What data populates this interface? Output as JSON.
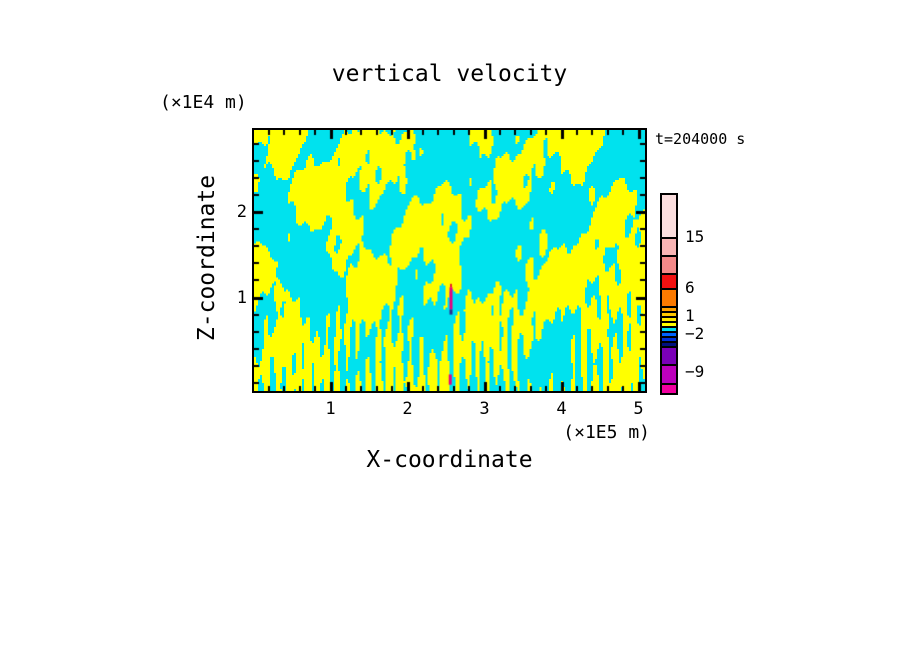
{
  "title": "vertical velocity",
  "time_label": "t=204000 s",
  "axes": {
    "x": {
      "label": "X-coordinate",
      "unit": "(×1E5 m)",
      "tick_labels": [
        "1",
        "2",
        "3",
        "4",
        "5"
      ],
      "major_ticks": [
        1,
        2,
        3,
        4,
        5
      ],
      "minor_start": 0.2,
      "minor_step": 0.2,
      "minor_end": 5.0
    },
    "y": {
      "label": "Z-coordinate",
      "unit": "(×1E4 m)",
      "tick_labels": [
        "1",
        "2"
      ],
      "major_ticks": [
        1,
        2
      ],
      "minor_start": 0.0,
      "minor_step": 0.2,
      "minor_end": 2.8
    }
  },
  "chart_data": {
    "type": "heatmap",
    "title": "vertical velocity",
    "xlabel": "X-coordinate",
    "ylabel": "Z-coordinate",
    "x_unit_note": "(×1E5 m)",
    "y_unit_note": "(×1E4 m)",
    "time_annotation": "t=204000 s",
    "x_range": [
      0,
      5.08
    ],
    "y_range": [
      -0.09,
      2.96
    ],
    "x_ticks": [
      1,
      2,
      3,
      4,
      5
    ],
    "y_ticks": [
      1,
      2
    ],
    "grid": false,
    "legend_position": "right-colorbar",
    "field": {
      "description": "two-level filled contour of vertical velocity: positive=yellow, negative=cyan",
      "threshold": 0,
      "positive_color": "#ffff00",
      "negative_color": "#00e2ee",
      "waves": [
        {
          "a": 0.9,
          "fx": 0.45,
          "fz": -0.6,
          "p": 1.3
        },
        {
          "a": 0.75,
          "fx": 0.78,
          "fz": 0.45,
          "p": 4.2
        },
        {
          "a": 0.6,
          "fx": 1.25,
          "fz": -0.95,
          "p": 2.1
        },
        {
          "a": 0.5,
          "fx": 2.1,
          "fz": 1.35,
          "p": 0.4
        },
        {
          "a": 0.42,
          "fx": 3.6,
          "fz": -2.2,
          "p": 2.0
        }
      ],
      "noises": [
        {
          "a": 1.15,
          "sx": 1.05,
          "sz": 0.95,
          "ox": 0.7,
          "oy": 3.1
        },
        {
          "a": 0.85,
          "sx": 2.2,
          "sz": 2.0,
          "ox": 5.2,
          "oy": 1.7
        },
        {
          "a": 0.55,
          "sx": 4.4,
          "sz": 3.6,
          "ox": 9.1,
          "oy": 6.3
        }
      ],
      "streak": {
        "fx": 7.3,
        "base": 0.28,
        "extra": 1.55,
        "zscale": 1.5,
        "pow": 1.6,
        "warp": 3.2,
        "wx": 1.7,
        "wox": 11.3,
        "wz": 0.8,
        "woy": 5.7
      },
      "bias": {
        "c": 0.22,
        "top_slope": 0.5,
        "top_start": 2.0
      }
    },
    "anomalies": [
      {
        "x": 2.565,
        "z_top": 1.16,
        "z_bot": 1.12,
        "half_w": 1,
        "color": "#ee2222"
      },
      {
        "x": 2.565,
        "z_top": 1.12,
        "z_bot": 0.86,
        "half_w": 1.5,
        "color": "#e6007f"
      },
      {
        "x": 2.565,
        "z_top": 0.86,
        "z_bot": 0.8,
        "half_w": 1.5,
        "color": "#2a2a90"
      },
      {
        "x": 2.555,
        "z_top": 0.1,
        "z_bot": -0.02,
        "half_w": 1.5,
        "color": "#e6007f"
      }
    ],
    "colorbar": {
      "segments": [
        {
          "color": "#fbdede",
          "h": 42
        },
        {
          "color": "#f8b4b4",
          "h": 18
        },
        {
          "color": "#f48989",
          "h": 18
        },
        {
          "color": "#f21111",
          "h": 15
        },
        {
          "color": "#fc7a00",
          "h": 18
        },
        {
          "color": "#ffa300",
          "h": 5
        },
        {
          "color": "#ffc800",
          "h": 5
        },
        {
          "color": "#ffea00",
          "h": 5
        },
        {
          "color": "#ffff00",
          "h": 5
        },
        {
          "color": "#00e2ee",
          "h": 5
        },
        {
          "color": "#0064ff",
          "h": 5
        },
        {
          "color": "#0030d8",
          "h": 5
        },
        {
          "color": "#001080",
          "h": 5
        },
        {
          "color": "#7a00b8",
          "h": 18
        },
        {
          "color": "#bc00bc",
          "h": 19
        },
        {
          "color": "#f100a0",
          "h": 10
        }
      ],
      "labels": [
        {
          "text": "15",
          "y_offset": 42
        },
        {
          "text": "6",
          "y_offset": 93
        },
        {
          "text": "1",
          "y_offset": 121
        },
        {
          "text": "−2",
          "y_offset": 139
        },
        {
          "text": "−9",
          "y_offset": 177
        }
      ]
    }
  }
}
